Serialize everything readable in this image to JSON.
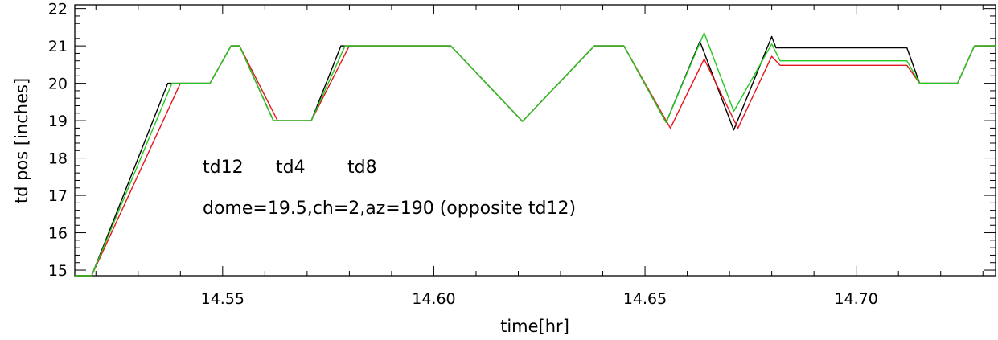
{
  "chart_data": {
    "type": "line",
    "title": "",
    "xlabel": "time[hr]",
    "ylabel": "td pos [inches]",
    "xlim": [
      14.515,
      14.733
    ],
    "ylim": [
      14.85,
      22.1
    ],
    "x_ticks": [
      "14.55",
      "14.60",
      "14.65",
      "14.70"
    ],
    "y_ticks": [
      "15",
      "16",
      "17",
      "18",
      "19",
      "20",
      "21",
      "22"
    ],
    "grid": false,
    "legend_location": "center-left",
    "annotation": "dome=19.5,ch=2,az=190 (opposite td12)",
    "series": [
      {
        "name": "td12",
        "color": "#000000",
        "x": [
          14.515,
          14.519,
          14.537,
          14.543,
          14.547,
          14.552,
          14.554,
          14.562,
          14.566,
          14.571,
          14.578,
          14.582,
          14.604,
          14.621,
          14.638,
          14.641,
          14.645,
          14.655,
          14.663,
          14.671,
          14.68,
          14.681,
          14.712,
          14.715,
          14.724,
          14.728,
          14.733
        ],
        "y": [
          14.85,
          14.85,
          20.0,
          20.0,
          20.0,
          21.0,
          21.0,
          19.0,
          19.0,
          19.0,
          21.0,
          21.0,
          21.0,
          18.98,
          21.0,
          21.0,
          21.0,
          18.95,
          21.12,
          18.75,
          21.25,
          20.95,
          20.95,
          20.0,
          20.0,
          21.0,
          21.0
        ]
      },
      {
        "name": "td4",
        "color": "#e8141c",
        "x": [
          14.515,
          14.519,
          14.54,
          14.543,
          14.547,
          14.552,
          14.554,
          14.563,
          14.566,
          14.571,
          14.58,
          14.582,
          14.604,
          14.621,
          14.638,
          14.641,
          14.645,
          14.656,
          14.664,
          14.672,
          14.68,
          14.682,
          14.712,
          14.715,
          14.724,
          14.728,
          14.733
        ],
        "y": [
          14.85,
          14.85,
          20.0,
          20.0,
          20.0,
          21.0,
          21.0,
          19.0,
          19.0,
          19.0,
          21.0,
          21.0,
          21.0,
          18.98,
          21.0,
          21.0,
          21.0,
          18.8,
          20.65,
          18.8,
          20.72,
          20.48,
          20.48,
          20.0,
          20.0,
          21.0,
          21.0
        ]
      },
      {
        "name": "td8",
        "color": "#22c81e",
        "x": [
          14.515,
          14.519,
          14.538,
          14.543,
          14.547,
          14.552,
          14.554,
          14.562,
          14.566,
          14.571,
          14.579,
          14.582,
          14.604,
          14.621,
          14.638,
          14.641,
          14.645,
          14.655,
          14.664,
          14.671,
          14.68,
          14.682,
          14.712,
          14.715,
          14.724,
          14.728,
          14.733
        ],
        "y": [
          14.85,
          14.85,
          20.0,
          20.0,
          20.0,
          21.0,
          21.0,
          19.0,
          19.0,
          19.0,
          21.0,
          21.0,
          21.0,
          18.98,
          21.0,
          21.0,
          21.0,
          18.95,
          21.35,
          19.25,
          21.05,
          20.6,
          20.6,
          20.0,
          20.0,
          21.0,
          21.0
        ]
      }
    ]
  }
}
